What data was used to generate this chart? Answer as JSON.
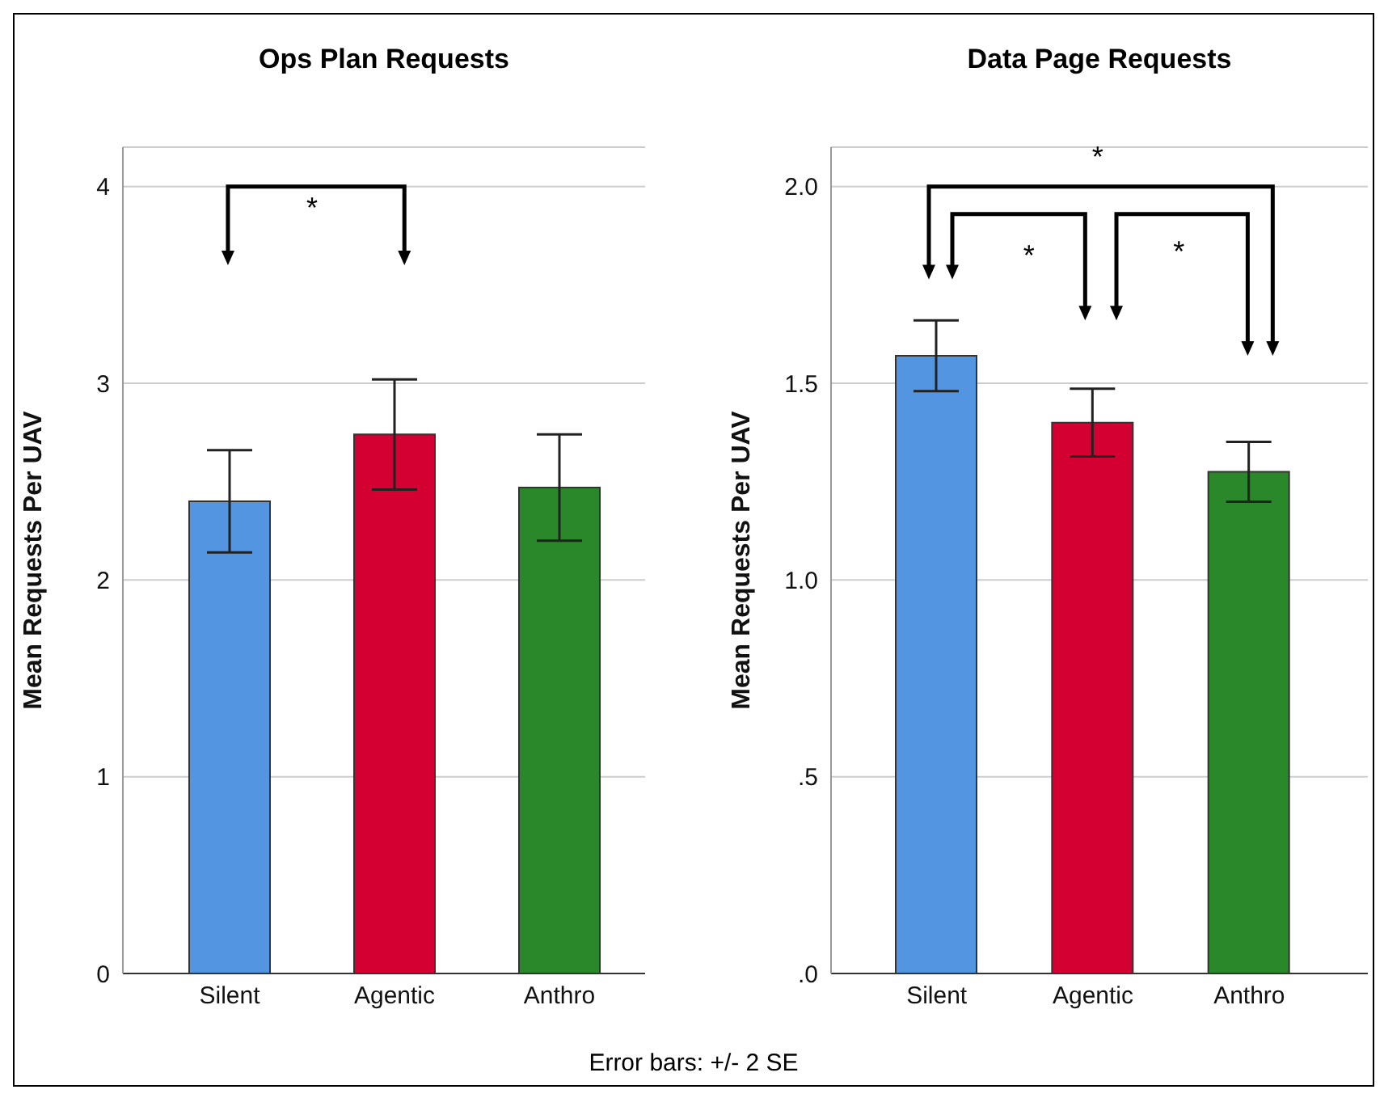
{
  "chart_data": [
    {
      "type": "bar",
      "title": "Ops Plan Requests",
      "ylabel": "Mean Requests Per UAV",
      "categories": [
        "Silent",
        "Agentic",
        "Anthro"
      ],
      "values": [
        2.4,
        2.74,
        2.47
      ],
      "errors": [
        0.26,
        0.28,
        0.27
      ],
      "colors": [
        "#5495e2",
        "#d50032",
        "#2a882a"
      ],
      "ylim": [
        0,
        4.2
      ],
      "yticks": [
        0,
        1,
        2,
        3,
        4
      ],
      "grid": "y",
      "annotations": [
        "*",
        "Error bars: +/- 2 SE"
      ]
    },
    {
      "type": "bar",
      "title": "Data Page Requests",
      "ylabel": "Mean Requests Per UAV",
      "categories": [
        "Silent",
        "Agentic",
        "Anthro"
      ],
      "values": [
        1.57,
        1.4,
        1.275
      ],
      "errors": [
        0.09,
        0.086,
        0.076
      ],
      "colors": [
        "#5495e2",
        "#d50032",
        "#2a882a"
      ],
      "ylim": [
        0,
        2.1
      ],
      "yticks": [
        {
          "value": 0,
          "label": ".0"
        },
        {
          "value": 0.5,
          "label": ".5"
        },
        {
          "value": 1,
          "label": "1.0"
        },
        {
          "value": 1.5,
          "label": "1.5"
        },
        {
          "value": 2,
          "label": "2.0"
        }
      ],
      "grid": "y",
      "annotations": [
        "*",
        "*",
        "*"
      ]
    }
  ]
}
